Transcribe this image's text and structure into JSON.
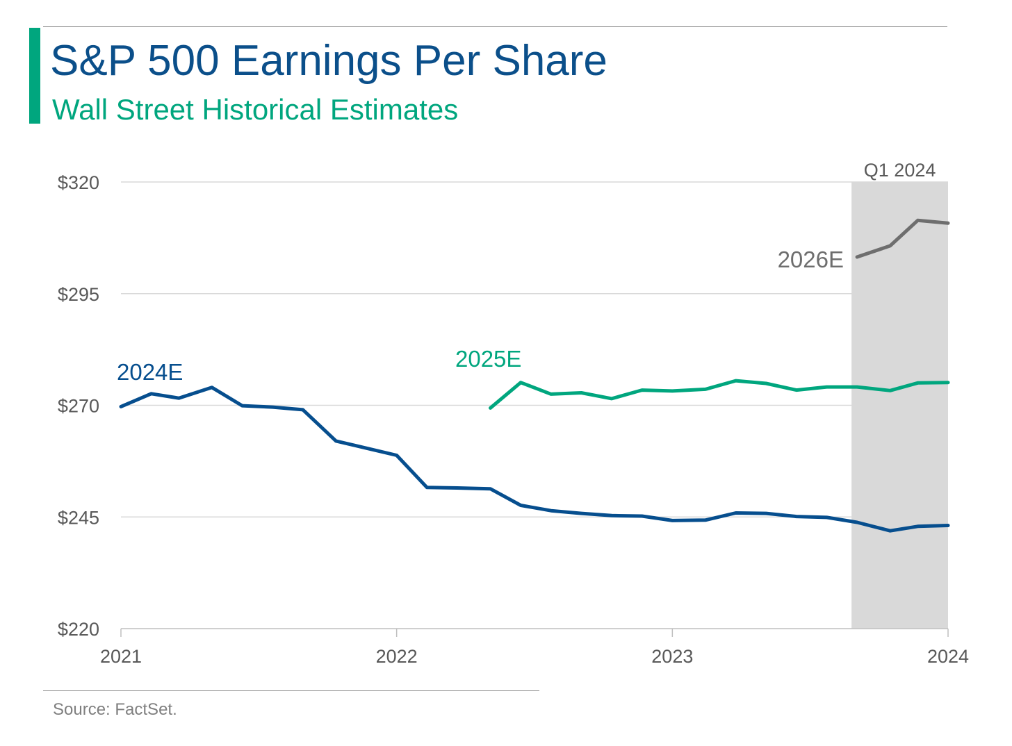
{
  "header": {
    "title": "S&P 500 Earnings Per Share",
    "subtitle": "Wall Street Historical Estimates"
  },
  "footer": {
    "source": "Source: FactSet."
  },
  "colors": {
    "title": "#0b4f8a",
    "accent": "#00a67e",
    "series_2024E": "#064e8e",
    "series_2025E": "#00a67e",
    "series_2026E": "#6e6e6e",
    "highlight": "#d9d9d9",
    "grid": "#d9d9d9",
    "axis_text": "#595959"
  },
  "chart_data": {
    "type": "line",
    "title": "S&P 500 Earnings Per Share",
    "subtitle": "Wall Street Historical Estimates",
    "xlabel": "",
    "ylabel": "",
    "x_ticks": [
      "2021",
      "2022",
      "2023",
      "2024"
    ],
    "y_ticks": [
      "$220",
      "$245",
      "$270",
      "$295",
      "$320"
    ],
    "ylim": [
      220,
      320
    ],
    "xlim": [
      2021,
      2024
    ],
    "grid": "horizontal",
    "highlight": {
      "label": "Q1 2024",
      "x_start": 2023.65,
      "x_end": 2024
    },
    "series": [
      {
        "name": "2024E",
        "color": "#064e8e",
        "points": [
          [
            2021.0,
            269.7
          ],
          [
            2021.11,
            272.6
          ],
          [
            2021.21,
            271.6
          ],
          [
            2021.33,
            274.0
          ],
          [
            2021.44,
            269.9
          ],
          [
            2021.55,
            269.6
          ],
          [
            2021.66,
            269.0
          ],
          [
            2021.78,
            262.0
          ],
          [
            2021.89,
            260.4
          ],
          [
            2022.0,
            258.8
          ],
          [
            2022.11,
            251.6
          ],
          [
            2022.22,
            251.5
          ],
          [
            2022.34,
            251.3
          ],
          [
            2022.45,
            247.6
          ],
          [
            2022.56,
            246.4
          ],
          [
            2022.67,
            245.8
          ],
          [
            2022.78,
            245.3
          ],
          [
            2022.89,
            245.2
          ],
          [
            2023.0,
            244.2
          ],
          [
            2023.12,
            244.3
          ],
          [
            2023.23,
            245.9
          ],
          [
            2023.34,
            245.8
          ],
          [
            2023.45,
            245.1
          ],
          [
            2023.56,
            244.9
          ],
          [
            2023.67,
            243.8
          ],
          [
            2023.79,
            241.9
          ],
          [
            2023.89,
            242.9
          ],
          [
            2024.0,
            243.1
          ]
        ]
      },
      {
        "name": "2025E",
        "color": "#00a67e",
        "points": [
          [
            2022.34,
            269.4
          ],
          [
            2022.45,
            275.1
          ],
          [
            2022.56,
            272.5
          ],
          [
            2022.67,
            272.8
          ],
          [
            2022.78,
            271.5
          ],
          [
            2022.89,
            273.4
          ],
          [
            2023.0,
            273.2
          ],
          [
            2023.12,
            273.6
          ],
          [
            2023.23,
            275.5
          ],
          [
            2023.34,
            274.9
          ],
          [
            2023.45,
            273.4
          ],
          [
            2023.56,
            274.1
          ],
          [
            2023.67,
            274.1
          ],
          [
            2023.79,
            273.3
          ],
          [
            2023.89,
            275.0
          ],
          [
            2024.0,
            275.1
          ]
        ]
      },
      {
        "name": "2026E",
        "color": "#6e6e6e",
        "points": [
          [
            2023.67,
            303.2
          ],
          [
            2023.79,
            305.7
          ],
          [
            2023.89,
            311.4
          ],
          [
            2024.0,
            310.8
          ]
        ]
      }
    ]
  }
}
